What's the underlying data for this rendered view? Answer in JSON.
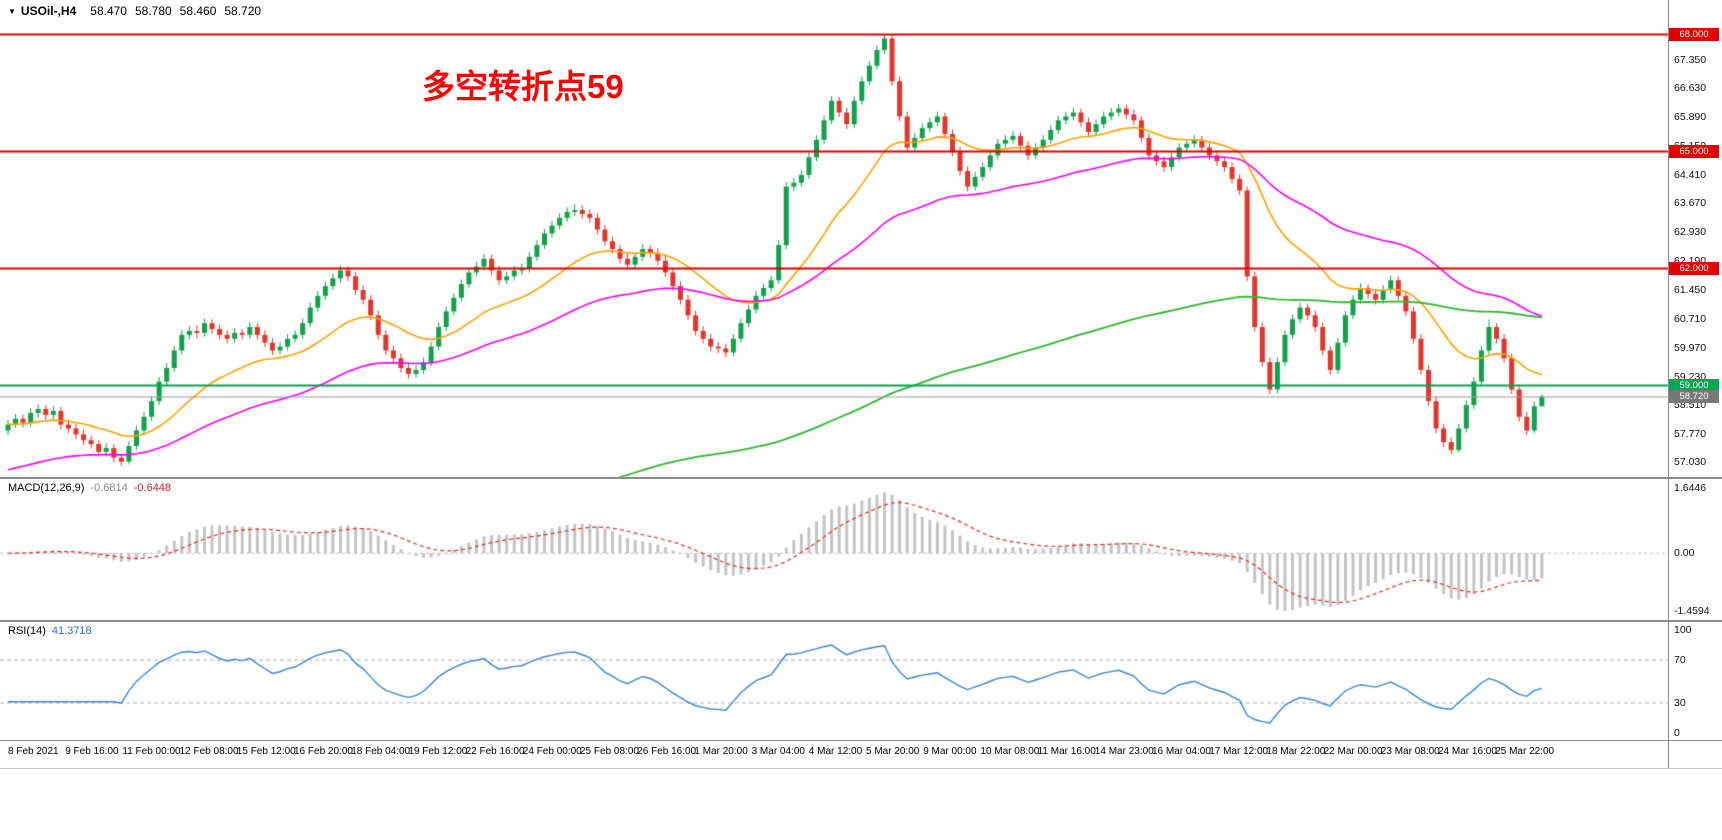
{
  "header": {
    "dropdown_icon": "▼",
    "symbol": "USOil-,H4",
    "open": "58.470",
    "high": "58.780",
    "low": "58.460",
    "close": "58.720"
  },
  "annotation": {
    "text": "多空转折点59",
    "color": "#ff0000"
  },
  "chart_data": {
    "type": "candlestick",
    "symbol": "USOil-,H4",
    "grid": "off",
    "x_labels": [
      "8 Feb 2021",
      "9 Feb 16:00",
      "11 Feb 00:00",
      "12 Feb 08:00",
      "15 Feb 12:00",
      "16 Feb 20:00",
      "18 Feb 04:00",
      "19 Feb 12:00",
      "22 Feb 16:00",
      "24 Feb 00:00",
      "25 Feb 08:00",
      "26 Feb 16:00",
      "1 Mar 20:00",
      "3 Mar 04:00",
      "4 Mar 12:00",
      "5 Mar 20:00",
      "9 Mar 00:00",
      "10 Mar 08:00",
      "11 Mar 16:00",
      "14 Mar 23:00",
      "16 Mar 04:00",
      "17 Mar 12:00",
      "18 Mar 22:00",
      "22 Mar 00:00",
      "23 Mar 08:00",
      "24 Mar 16:00",
      "25 Mar 22:00"
    ],
    "price_axis": {
      "min": 56.81,
      "max": 68.73,
      "tick_labels": [
        "67.350",
        "66.630",
        "65.890",
        "65.150",
        "64.410",
        "63.670",
        "62.930",
        "62.190",
        "61.450",
        "60.710",
        "59.970",
        "59.230",
        "58.510",
        "57.770",
        "57.030"
      ],
      "level_lines": [
        {
          "value": 68.0,
          "label": "68.000",
          "color": "#e00000"
        },
        {
          "value": 65.0,
          "label": "65.000",
          "color": "#e00000"
        },
        {
          "value": 62.0,
          "label": "62.000",
          "color": "#e00000"
        },
        {
          "value": 59.0,
          "label": "59.000",
          "color": "#00a651"
        }
      ],
      "current_price": {
        "value": 58.72,
        "label": "58.720",
        "color": "#787878"
      }
    },
    "overlays": {
      "ma_fast_color": "#ffa200",
      "ma_mid_color": "#ff00ff",
      "ma_slow_color": "#2eb82e",
      "up_color": "#12a14b",
      "down_color": "#e3352c"
    },
    "macd": {
      "label": "MACD(12,26,9)",
      "main_value": "-0.6814",
      "signal_value": "-0.6448",
      "axis_top": "1.6446",
      "axis_zero": "0.00",
      "axis_bottom": "-1.4594",
      "range": [
        1.6446,
        -1.4594
      ],
      "hist_color": "#c4c4c4",
      "signal_color": "#e03030"
    },
    "rsi": {
      "label": "RSI(14)",
      "value": "41.3718",
      "axis_labels": [
        "100",
        "70",
        "30",
        "0"
      ],
      "levels": [
        70,
        30
      ],
      "range": [
        0,
        100
      ],
      "line_color": "#3a87d0"
    },
    "candles": [
      [
        57.85,
        58.12,
        57.73,
        58.0
      ],
      [
        58.0,
        58.27,
        57.92,
        58.15
      ],
      [
        58.15,
        58.25,
        57.93,
        58.05
      ],
      [
        58.05,
        58.42,
        57.95,
        58.3
      ],
      [
        58.3,
        58.52,
        58.18,
        58.4
      ],
      [
        58.4,
        58.5,
        58.12,
        58.25
      ],
      [
        58.25,
        58.47,
        58.13,
        58.35
      ],
      [
        58.35,
        58.45,
        57.88,
        58.0
      ],
      [
        58.0,
        58.12,
        57.78,
        57.9
      ],
      [
        57.9,
        58.02,
        57.62,
        57.75
      ],
      [
        57.75,
        57.87,
        57.48,
        57.6
      ],
      [
        57.6,
        57.72,
        57.38,
        57.5
      ],
      [
        57.5,
        57.6,
        57.18,
        57.3
      ],
      [
        57.3,
        57.52,
        57.18,
        57.4
      ],
      [
        57.4,
        57.5,
        57.03,
        57.15
      ],
      [
        57.15,
        57.25,
        56.95,
        57.05
      ],
      [
        57.05,
        57.57,
        56.98,
        57.45
      ],
      [
        57.45,
        57.97,
        57.35,
        57.85
      ],
      [
        57.85,
        58.32,
        57.75,
        58.2
      ],
      [
        58.2,
        58.72,
        58.1,
        58.6
      ],
      [
        58.6,
        59.22,
        58.5,
        59.1
      ],
      [
        59.1,
        59.57,
        59.0,
        59.45
      ],
      [
        59.45,
        60.02,
        59.35,
        59.9
      ],
      [
        59.9,
        60.42,
        59.8,
        60.3
      ],
      [
        60.3,
        60.52,
        60.18,
        60.4
      ],
      [
        60.4,
        60.55,
        60.2,
        60.35
      ],
      [
        60.35,
        60.72,
        60.25,
        60.6
      ],
      [
        60.6,
        60.7,
        60.32,
        60.45
      ],
      [
        60.45,
        60.57,
        60.18,
        60.3
      ],
      [
        60.3,
        60.42,
        60.08,
        60.2
      ],
      [
        60.2,
        60.47,
        60.1,
        60.35
      ],
      [
        60.35,
        60.45,
        60.18,
        60.3
      ],
      [
        60.3,
        60.62,
        60.2,
        60.5
      ],
      [
        60.5,
        60.6,
        60.18,
        60.3
      ],
      [
        60.3,
        60.42,
        59.98,
        60.1
      ],
      [
        60.1,
        60.22,
        59.78,
        59.9
      ],
      [
        59.9,
        60.12,
        59.8,
        60.0
      ],
      [
        60.0,
        60.32,
        59.9,
        60.2
      ],
      [
        60.2,
        60.42,
        60.1,
        60.3
      ],
      [
        60.3,
        60.72,
        60.2,
        60.6
      ],
      [
        60.6,
        61.12,
        60.5,
        61.0
      ],
      [
        61.0,
        61.42,
        60.9,
        61.3
      ],
      [
        61.3,
        61.67,
        61.2,
        61.55
      ],
      [
        61.55,
        61.87,
        61.45,
        61.75
      ],
      [
        61.75,
        62.07,
        61.65,
        61.95
      ],
      [
        61.95,
        62.05,
        61.68,
        61.8
      ],
      [
        61.8,
        61.92,
        61.33,
        61.45
      ],
      [
        61.45,
        61.57,
        61.08,
        61.2
      ],
      [
        61.2,
        61.32,
        60.68,
        60.8
      ],
      [
        60.8,
        60.92,
        60.18,
        60.3
      ],
      [
        60.3,
        60.42,
        59.78,
        59.9
      ],
      [
        59.9,
        60.02,
        59.58,
        59.7
      ],
      [
        59.7,
        59.82,
        59.33,
        59.45
      ],
      [
        59.45,
        59.57,
        59.18,
        59.3
      ],
      [
        59.3,
        59.52,
        59.2,
        59.4
      ],
      [
        59.4,
        59.72,
        59.3,
        59.6
      ],
      [
        59.6,
        60.12,
        59.5,
        60.0
      ],
      [
        60.0,
        60.62,
        59.9,
        60.5
      ],
      [
        60.5,
        61.02,
        60.4,
        60.9
      ],
      [
        60.9,
        61.37,
        60.8,
        61.25
      ],
      [
        61.25,
        61.72,
        61.15,
        61.6
      ],
      [
        61.6,
        62.02,
        61.5,
        61.9
      ],
      [
        61.9,
        62.17,
        61.8,
        62.05
      ],
      [
        62.05,
        62.37,
        61.95,
        62.25
      ],
      [
        62.25,
        62.35,
        61.83,
        61.95
      ],
      [
        61.95,
        62.07,
        61.58,
        61.7
      ],
      [
        61.7,
        61.92,
        61.6,
        61.8
      ],
      [
        61.8,
        62.07,
        61.7,
        61.95
      ],
      [
        61.95,
        62.12,
        61.85,
        62.0
      ],
      [
        62.0,
        62.42,
        61.9,
        62.3
      ],
      [
        62.3,
        62.72,
        62.2,
        62.6
      ],
      [
        62.6,
        63.02,
        62.5,
        62.9
      ],
      [
        62.9,
        63.22,
        62.8,
        63.1
      ],
      [
        63.1,
        63.42,
        63.0,
        63.3
      ],
      [
        63.3,
        63.57,
        63.2,
        63.45
      ],
      [
        63.45,
        63.65,
        63.35,
        63.5
      ],
      [
        63.5,
        63.62,
        63.28,
        63.4
      ],
      [
        63.4,
        63.52,
        63.18,
        63.3
      ],
      [
        63.3,
        63.42,
        62.88,
        63.0
      ],
      [
        63.0,
        63.12,
        62.58,
        62.7
      ],
      [
        62.7,
        62.82,
        62.38,
        62.5
      ],
      [
        62.5,
        62.62,
        62.13,
        62.25
      ],
      [
        62.25,
        62.37,
        61.98,
        62.1
      ],
      [
        62.1,
        62.42,
        62.0,
        62.3
      ],
      [
        62.3,
        62.62,
        62.2,
        62.5
      ],
      [
        62.5,
        62.6,
        62.28,
        62.4
      ],
      [
        62.4,
        62.52,
        62.08,
        62.2
      ],
      [
        62.2,
        62.32,
        61.78,
        61.9
      ],
      [
        61.9,
        62.02,
        61.43,
        61.55
      ],
      [
        61.55,
        61.67,
        61.08,
        61.2
      ],
      [
        61.2,
        61.32,
        60.68,
        60.8
      ],
      [
        60.8,
        60.92,
        60.28,
        60.4
      ],
      [
        60.4,
        60.52,
        60.08,
        60.2
      ],
      [
        60.2,
        60.32,
        59.88,
        60.0
      ],
      [
        60.0,
        60.12,
        59.83,
        59.95
      ],
      [
        59.95,
        60.07,
        59.73,
        59.85
      ],
      [
        59.85,
        60.32,
        59.75,
        60.2
      ],
      [
        60.2,
        60.72,
        60.1,
        60.6
      ],
      [
        60.6,
        61.07,
        60.5,
        60.95
      ],
      [
        60.95,
        61.42,
        60.85,
        61.3
      ],
      [
        61.3,
        61.62,
        61.2,
        61.5
      ],
      [
        61.5,
        61.82,
        61.4,
        61.7
      ],
      [
        61.7,
        62.72,
        61.6,
        62.6
      ],
      [
        62.6,
        64.22,
        62.5,
        64.1
      ],
      [
        64.1,
        64.32,
        63.98,
        64.2
      ],
      [
        64.2,
        64.52,
        64.1,
        64.4
      ],
      [
        64.4,
        64.97,
        64.3,
        64.85
      ],
      [
        64.85,
        65.42,
        64.75,
        65.3
      ],
      [
        65.3,
        65.92,
        65.2,
        65.8
      ],
      [
        65.8,
        66.42,
        65.7,
        66.3
      ],
      [
        66.3,
        66.4,
        65.88,
        66.0
      ],
      [
        66.0,
        66.12,
        65.58,
        65.7
      ],
      [
        65.7,
        66.42,
        65.6,
        66.3
      ],
      [
        66.3,
        66.92,
        66.2,
        66.8
      ],
      [
        66.8,
        67.32,
        66.7,
        67.2
      ],
      [
        67.2,
        67.72,
        67.1,
        67.6
      ],
      [
        67.6,
        68.0,
        67.5,
        67.9
      ],
      [
        67.9,
        68.0,
        66.68,
        66.8
      ],
      [
        66.8,
        66.92,
        65.78,
        65.9
      ],
      [
        65.9,
        66.02,
        64.98,
        65.1
      ],
      [
        65.1,
        65.47,
        65.0,
        65.35
      ],
      [
        65.35,
        65.72,
        65.25,
        65.6
      ],
      [
        65.6,
        65.87,
        65.5,
        65.75
      ],
      [
        65.75,
        66.02,
        65.65,
        65.9
      ],
      [
        65.9,
        66.0,
        65.33,
        65.45
      ],
      [
        65.45,
        65.57,
        64.88,
        65.0
      ],
      [
        65.0,
        65.12,
        64.38,
        64.5
      ],
      [
        64.5,
        64.62,
        63.98,
        64.1
      ],
      [
        64.1,
        64.47,
        64.0,
        64.35
      ],
      [
        64.35,
        64.72,
        64.25,
        64.6
      ],
      [
        64.6,
        65.02,
        64.5,
        64.9
      ],
      [
        64.9,
        65.32,
        64.8,
        65.2
      ],
      [
        65.2,
        65.42,
        65.1,
        65.3
      ],
      [
        65.3,
        65.52,
        65.2,
        65.4
      ],
      [
        65.4,
        65.5,
        65.03,
        65.15
      ],
      [
        65.15,
        65.27,
        64.78,
        64.9
      ],
      [
        64.9,
        65.22,
        64.8,
        65.1
      ],
      [
        65.1,
        65.42,
        65.0,
        65.3
      ],
      [
        65.3,
        65.67,
        65.2,
        65.55
      ],
      [
        65.55,
        65.92,
        65.45,
        65.8
      ],
      [
        65.8,
        66.02,
        65.7,
        65.9
      ],
      [
        65.9,
        66.12,
        65.8,
        66.0
      ],
      [
        66.0,
        66.1,
        65.63,
        65.75
      ],
      [
        65.75,
        65.87,
        65.38,
        65.5
      ],
      [
        65.5,
        65.82,
        65.4,
        65.7
      ],
      [
        65.7,
        66.02,
        65.6,
        65.9
      ],
      [
        65.9,
        66.12,
        65.8,
        66.0
      ],
      [
        66.0,
        66.22,
        65.9,
        66.1
      ],
      [
        66.1,
        66.2,
        65.83,
        65.95
      ],
      [
        65.95,
        66.07,
        65.68,
        65.8
      ],
      [
        65.8,
        65.9,
        65.23,
        65.35
      ],
      [
        65.35,
        65.47,
        64.78,
        64.9
      ],
      [
        64.9,
        65.02,
        64.63,
        64.75
      ],
      [
        64.75,
        64.87,
        64.48,
        64.6
      ],
      [
        64.6,
        64.97,
        64.5,
        64.85
      ],
      [
        64.85,
        65.22,
        64.75,
        65.1
      ],
      [
        65.1,
        65.32,
        65.0,
        65.2
      ],
      [
        65.2,
        65.42,
        65.1,
        65.3
      ],
      [
        65.3,
        65.4,
        64.98,
        65.1
      ],
      [
        65.1,
        65.22,
        64.78,
        64.9
      ],
      [
        64.9,
        65.02,
        64.63,
        64.75
      ],
      [
        64.75,
        64.87,
        64.48,
        64.6
      ],
      [
        64.6,
        64.72,
        64.18,
        64.3
      ],
      [
        64.3,
        64.42,
        63.88,
        64.0
      ],
      [
        64.0,
        64.1,
        61.68,
        61.8
      ],
      [
        61.8,
        61.92,
        60.38,
        60.5
      ],
      [
        60.5,
        60.62,
        59.48,
        59.6
      ],
      [
        59.6,
        59.72,
        58.78,
        58.9
      ],
      [
        58.9,
        59.72,
        58.8,
        59.6
      ],
      [
        59.6,
        60.42,
        59.5,
        60.3
      ],
      [
        60.3,
        60.82,
        60.2,
        60.7
      ],
      [
        60.7,
        61.12,
        60.6,
        61.0
      ],
      [
        61.0,
        61.1,
        60.68,
        60.8
      ],
      [
        60.8,
        60.92,
        60.38,
        60.5
      ],
      [
        60.5,
        60.62,
        59.78,
        59.9
      ],
      [
        59.9,
        60.02,
        59.28,
        59.4
      ],
      [
        59.4,
        60.22,
        59.3,
        60.1
      ],
      [
        60.1,
        60.92,
        60.0,
        60.8
      ],
      [
        60.8,
        61.32,
        60.7,
        61.2
      ],
      [
        61.2,
        61.62,
        61.1,
        61.5
      ],
      [
        61.5,
        61.6,
        61.23,
        61.35
      ],
      [
        61.35,
        61.47,
        61.08,
        61.2
      ],
      [
        61.2,
        61.57,
        61.1,
        61.45
      ],
      [
        61.45,
        61.82,
        61.35,
        61.7
      ],
      [
        61.7,
        61.8,
        61.18,
        61.3
      ],
      [
        61.3,
        61.42,
        60.78,
        60.9
      ],
      [
        60.9,
        61.02,
        60.08,
        60.2
      ],
      [
        60.2,
        60.32,
        59.28,
        59.4
      ],
      [
        59.4,
        59.52,
        58.48,
        58.6
      ],
      [
        58.6,
        58.72,
        57.78,
        57.9
      ],
      [
        57.9,
        58.02,
        57.43,
        57.55
      ],
      [
        57.55,
        57.67,
        57.25,
        57.35
      ],
      [
        57.35,
        58.02,
        57.28,
        57.9
      ],
      [
        57.9,
        58.62,
        57.8,
        58.5
      ],
      [
        58.5,
        59.22,
        58.4,
        59.1
      ],
      [
        59.1,
        60.02,
        59.0,
        59.9
      ],
      [
        59.9,
        60.7,
        59.8,
        60.5
      ],
      [
        60.5,
        60.6,
        60.08,
        60.2
      ],
      [
        60.2,
        60.32,
        59.58,
        59.7
      ],
      [
        59.7,
        59.82,
        58.78,
        58.9
      ],
      [
        58.9,
        59.02,
        58.08,
        58.2
      ],
      [
        58.2,
        58.32,
        57.73,
        57.85
      ],
      [
        57.85,
        58.59,
        57.78,
        58.47
      ],
      [
        58.47,
        58.78,
        58.46,
        58.72
      ]
    ]
  }
}
